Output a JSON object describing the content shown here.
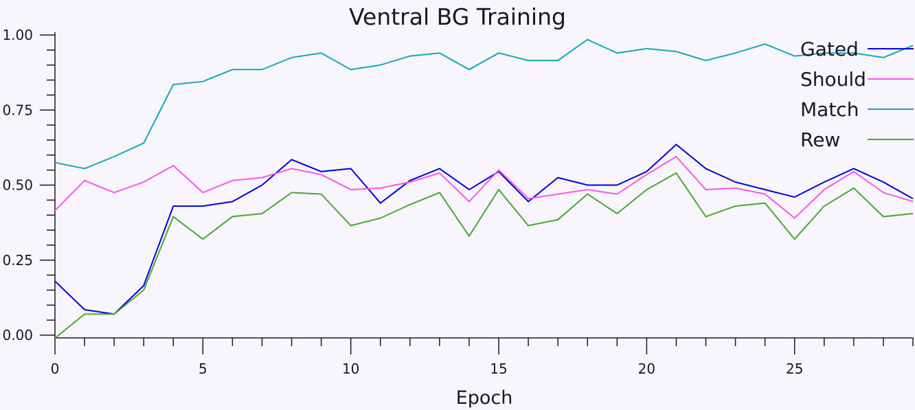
{
  "chart_data": {
    "type": "line",
    "title": "Ventral BG Training",
    "xlabel": "Epoch",
    "ylabel": "",
    "xlim": [
      0,
      29
    ],
    "ylim": [
      0,
      1
    ],
    "x_ticks": [
      "0",
      "5",
      "10",
      "15",
      "20",
      "25"
    ],
    "x_tick_values": [
      0,
      5,
      10,
      15,
      20,
      25
    ],
    "y_ticks": [
      "0.00",
      "0.25",
      "0.50",
      "0.75",
      "1.00"
    ],
    "y_tick_values": [
      0,
      0.25,
      0.5,
      0.75,
      1.0
    ],
    "legend_position": "top-right",
    "grid": false,
    "x": [
      0,
      1,
      2,
      3,
      4,
      5,
      6,
      7,
      8,
      9,
      10,
      11,
      12,
      13,
      14,
      15,
      16,
      17,
      18,
      19,
      20,
      21,
      22,
      23,
      24,
      25,
      26,
      27,
      28,
      29
    ],
    "series": [
      {
        "name": "Gated",
        "color": "#0000dd",
        "values": [
          0.18,
          0.085,
          0.07,
          0.165,
          0.43,
          0.43,
          0.445,
          0.5,
          0.585,
          0.545,
          0.555,
          0.44,
          0.515,
          0.555,
          0.485,
          0.545,
          0.445,
          0.525,
          0.5,
          0.5,
          0.545,
          0.635,
          0.555,
          0.51,
          0.485,
          0.46,
          0.51,
          0.555,
          0.51,
          0.455
        ]
      },
      {
        "name": "Should",
        "color": "#ff55ee",
        "values": [
          0.415,
          0.515,
          0.475,
          0.51,
          0.565,
          0.475,
          0.515,
          0.525,
          0.555,
          0.535,
          0.485,
          0.49,
          0.51,
          0.54,
          0.445,
          0.55,
          0.455,
          0.47,
          0.485,
          0.47,
          0.535,
          0.595,
          0.485,
          0.49,
          0.47,
          0.39,
          0.485,
          0.545,
          0.475,
          0.445
        ]
      },
      {
        "name": "Match",
        "color": "#11aabb",
        "values": [
          0.575,
          0.555,
          0.595,
          0.64,
          0.835,
          0.845,
          0.885,
          0.885,
          0.925,
          0.94,
          0.885,
          0.9,
          0.93,
          0.94,
          0.885,
          0.94,
          0.915,
          0.915,
          0.985,
          0.94,
          0.955,
          0.945,
          0.915,
          0.94,
          0.97,
          0.93,
          0.94,
          0.94,
          0.925,
          0.965
        ]
      },
      {
        "name": "Rew",
        "color": "#44aa33",
        "values": [
          -0.01,
          0.07,
          0.07,
          0.15,
          0.395,
          0.32,
          0.395,
          0.405,
          0.475,
          0.47,
          0.365,
          0.39,
          0.435,
          0.475,
          0.33,
          0.485,
          0.365,
          0.385,
          0.47,
          0.405,
          0.485,
          0.54,
          0.395,
          0.43,
          0.44,
          0.32,
          0.43,
          0.49,
          0.395,
          0.405
        ]
      }
    ]
  }
}
